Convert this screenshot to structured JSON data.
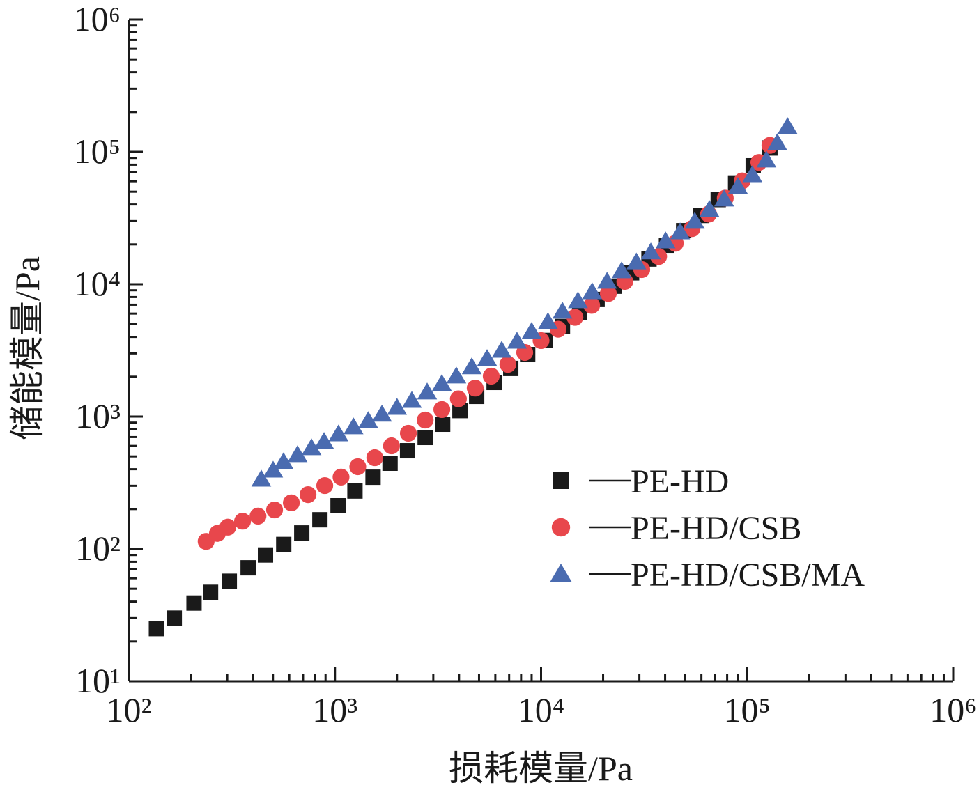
{
  "chart_data": {
    "type": "scatter",
    "x_label": "损耗模量/Pa",
    "y_label": "储能模量/Pa",
    "xscale": "log",
    "yscale": "log",
    "xlim": [
      100,
      1000000
    ],
    "ylim": [
      10,
      1000000
    ],
    "xticks": [
      {
        "value": 100,
        "label": "10²"
      },
      {
        "value": 1000,
        "label": "10³"
      },
      {
        "value": 10000,
        "label": "10⁴"
      },
      {
        "value": 100000,
        "label": "10⁵"
      },
      {
        "value": 1000000,
        "label": "10⁶"
      }
    ],
    "yticks": [
      {
        "value": 10,
        "label": "10¹"
      },
      {
        "value": 100,
        "label": "10²"
      },
      {
        "value": 1000,
        "label": "10³"
      },
      {
        "value": 10000,
        "label": "10⁴"
      },
      {
        "value": 100000,
        "label": "10⁵"
      },
      {
        "value": 1000000,
        "label": "10⁶"
      }
    ],
    "legend": "right",
    "series": [
      {
        "name": "PE-HD",
        "color": "#1a1a1a",
        "marker": "square",
        "x": [
          136,
          166,
          207,
          249,
          307,
          379,
          460,
          564,
          690,
          845,
          1035,
          1250,
          1530,
          1850,
          2250,
          2740,
          3330,
          4040,
          4870,
          5920,
          7130,
          8610,
          10500,
          12700,
          15400,
          18700,
          22700,
          27500,
          33400,
          40600,
          49200,
          59700,
          72400,
          87900,
          107000,
          129000
        ],
        "values": [
          25,
          30,
          39,
          47,
          57,
          72,
          90,
          108,
          132,
          166,
          212,
          274,
          348,
          444,
          552,
          695,
          875,
          1110,
          1420,
          1810,
          2310,
          2940,
          3760,
          4790,
          6100,
          7670,
          9660,
          12200,
          15500,
          19700,
          25400,
          33100,
          43600,
          58200,
          78500,
          107000
        ]
      },
      {
        "name": "PE-HD/CSB",
        "color": "#e8474c",
        "marker": "circle",
        "x": [
          237,
          269,
          302,
          356,
          423,
          509,
          614,
          740,
          892,
          1070,
          1290,
          1560,
          1880,
          2270,
          2740,
          3300,
          3970,
          4790,
          5730,
          6900,
          8330,
          10000,
          12100,
          14600,
          17600,
          21200,
          25500,
          30800,
          37200,
          44800,
          54000,
          65000,
          78300,
          94600,
          114000,
          129000
        ],
        "values": [
          114,
          131,
          146,
          162,
          177,
          197,
          223,
          257,
          301,
          349,
          418,
          489,
          601,
          748,
          941,
          1130,
          1360,
          1640,
          2020,
          2480,
          3050,
          3750,
          4570,
          5620,
          6920,
          8510,
          10500,
          12900,
          16200,
          20400,
          26300,
          33900,
          44700,
          60300,
          83200,
          112000
        ]
      },
      {
        "name": "PE-HD/CSB/MA",
        "color": "#4a6bb0",
        "marker": "triangle",
        "x": [
          439,
          501,
          563,
          658,
          769,
          885,
          1040,
          1230,
          1450,
          1690,
          2000,
          2360,
          2800,
          3300,
          3880,
          4610,
          5470,
          6440,
          7640,
          9000,
          10800,
          12700,
          15100,
          17700,
          20900,
          24600,
          29000,
          34100,
          40200,
          47300,
          55700,
          65600,
          77300,
          90200,
          106000,
          124000,
          140000,
          157000
        ],
        "values": [
          336,
          393,
          455,
          514,
          580,
          647,
          738,
          834,
          930,
          1040,
          1170,
          1320,
          1530,
          1770,
          2020,
          2370,
          2740,
          3160,
          3700,
          4390,
          5200,
          6240,
          7480,
          8750,
          10500,
          12600,
          14700,
          17500,
          21200,
          24800,
          29800,
          36600,
          43900,
          54600,
          67000,
          86500,
          117000,
          155000
        ]
      }
    ]
  }
}
